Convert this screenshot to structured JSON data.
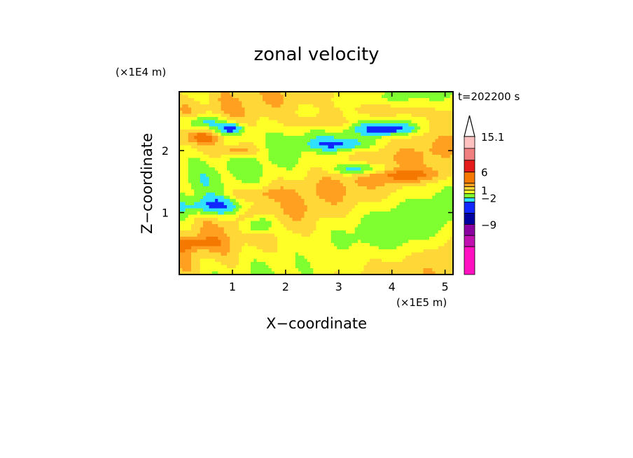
{
  "chart_data": {
    "type": "heatmap",
    "title": "zonal velocity",
    "xlabel": "X−coordinate",
    "ylabel": "Z−coordinate",
    "x_unit": "(×1E5 m)",
    "y_unit": "(×1E4 m)",
    "time_label": "t=202200 s",
    "xlim": [
      0,
      5.15
    ],
    "ylim": [
      0,
      2.95
    ],
    "xticks": [
      1,
      2,
      3,
      4,
      5
    ],
    "yticks": [
      1,
      2
    ],
    "colorbar": {
      "labels": [
        "15.1",
        "6",
        "1",
        "−2",
        "−9"
      ],
      "levels_top_to_bottom": [
        {
          "color": "#ffc0c0"
        },
        {
          "color": "#f08080"
        },
        {
          "color": "#e51a1a"
        },
        {
          "color": "#f57800"
        },
        {
          "color": "#ffa020"
        },
        {
          "color": "#ffd838"
        },
        {
          "color": "#ffff28"
        },
        {
          "color": "#7fff30"
        },
        {
          "color": "#30e0ff"
        },
        {
          "color": "#1028ff"
        },
        {
          "color": "#0000a0"
        },
        {
          "color": "#8a00a0"
        },
        {
          "color": "#c010b0"
        },
        {
          "color": "#ff10c0"
        }
      ],
      "extend_top": true
    },
    "features": [
      {
        "x": 0.4,
        "z": 2.45,
        "value": -5,
        "rx": 0.45,
        "rz": 0.12
      },
      {
        "x": 1.0,
        "z": 2.35,
        "value": -6,
        "rx": 0.25,
        "rz": 0.1
      },
      {
        "x": 3.0,
        "z": 2.1,
        "value": -4,
        "rx": 0.6,
        "rz": 0.1
      },
      {
        "x": 3.9,
        "z": 2.35,
        "value": -6,
        "rx": 0.55,
        "rz": 0.1
      },
      {
        "x": 3.4,
        "z": 1.7,
        "value": -5,
        "rx": 0.5,
        "rz": 0.1
      },
      {
        "x": 0.7,
        "z": 1.1,
        "value": -5,
        "rx": 0.6,
        "rz": 0.15
      },
      {
        "x": 1.5,
        "z": 0.8,
        "value": -5,
        "rx": 0.3,
        "rz": 0.15
      },
      {
        "x": 0.5,
        "z": 2.2,
        "value": 3,
        "rx": 0.3,
        "rz": 0.08
      },
      {
        "x": 1.1,
        "z": 2.0,
        "value": 4,
        "rx": 0.35,
        "rz": 0.1
      },
      {
        "x": 3.9,
        "z": 2.65,
        "value": 3,
        "rx": 0.9,
        "rz": 0.12
      },
      {
        "x": 2.8,
        "z": 2.45,
        "value": 3,
        "rx": 0.6,
        "rz": 0.12
      },
      {
        "x": 0.3,
        "z": 0.5,
        "value": 3,
        "rx": 0.4,
        "rz": 0.12
      },
      {
        "x": 4.3,
        "z": 1.6,
        "value": 3,
        "rx": 0.7,
        "rz": 0.1
      },
      {
        "x": 1.5,
        "z": 1.3,
        "value": 2,
        "rx": 0.5,
        "rz": 0.1
      },
      {
        "x": 4.2,
        "z": 0.7,
        "value": -1,
        "rx": 0.9,
        "rz": 0.4
      },
      {
        "x": 2.9,
        "z": 0.3,
        "value": 1,
        "rx": 1.0,
        "rz": 0.3
      }
    ]
  }
}
